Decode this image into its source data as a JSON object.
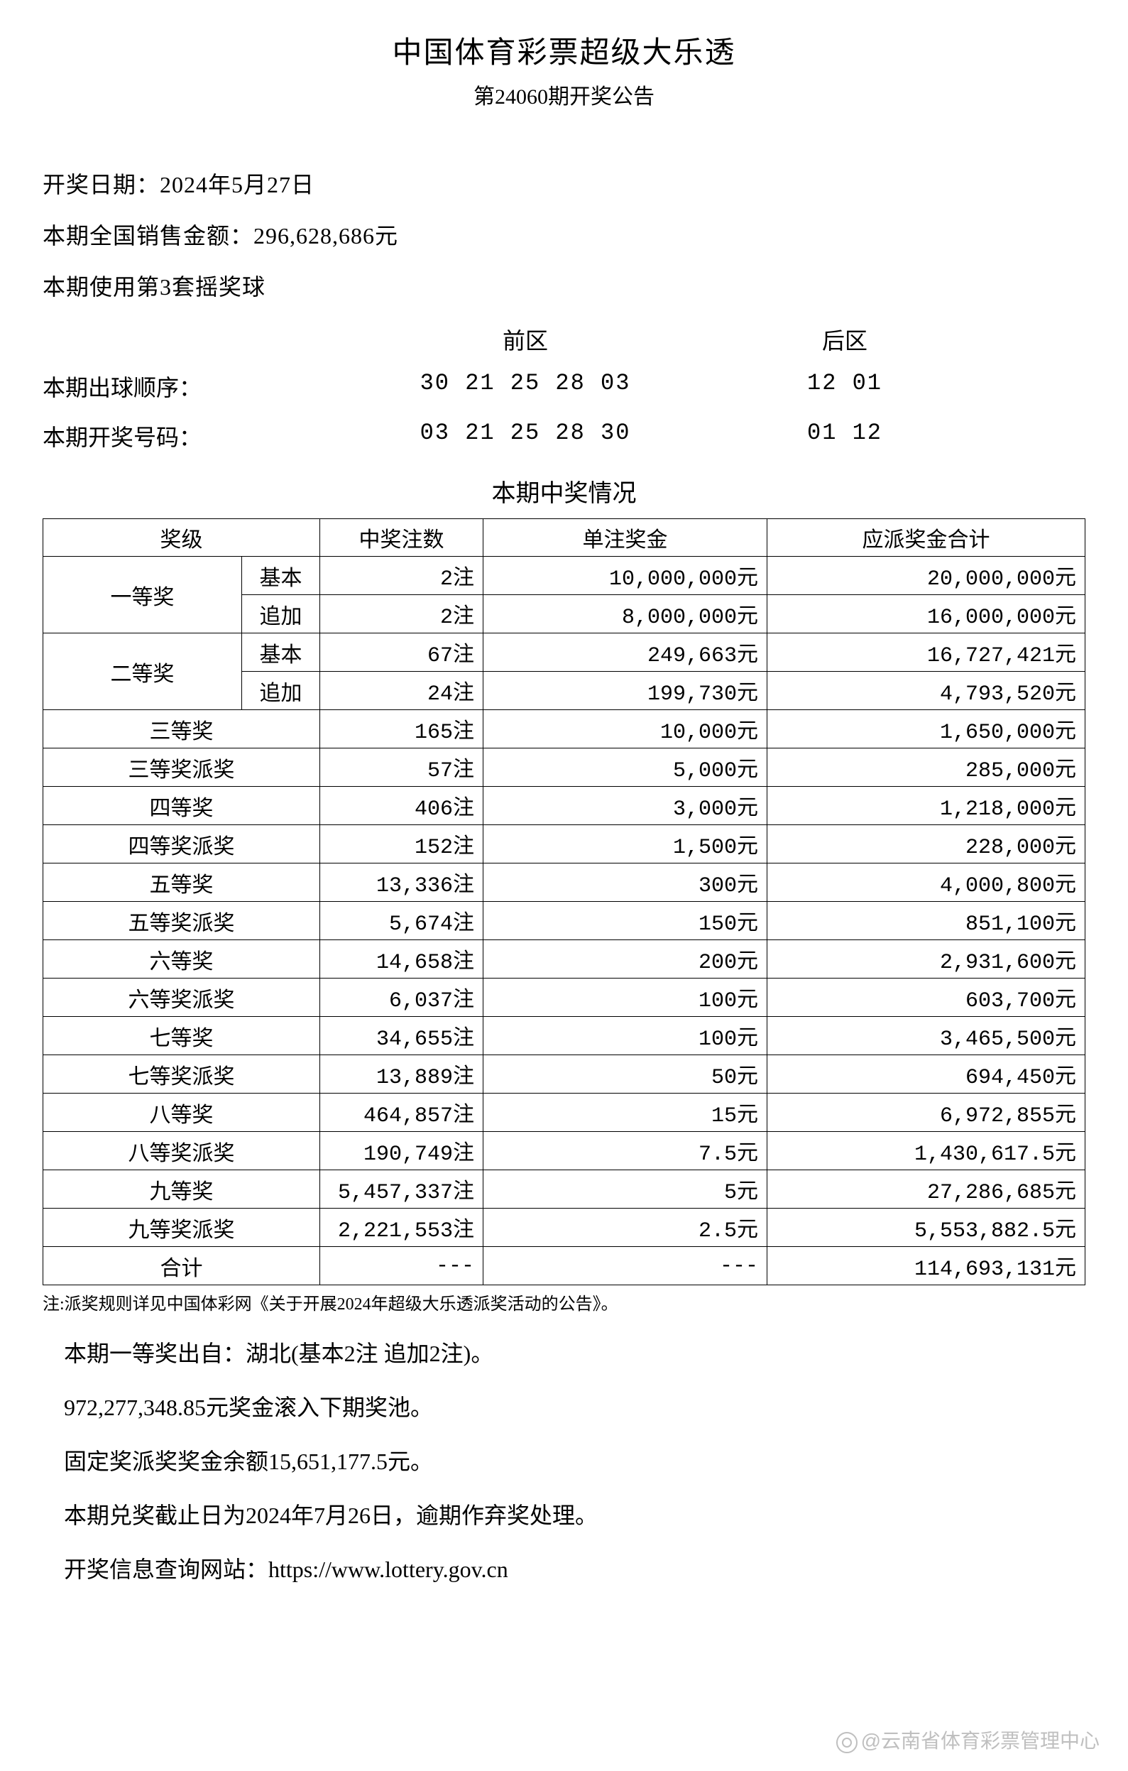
{
  "header": {
    "title": "中国体育彩票超级大乐透",
    "subtitle": "第24060期开奖公告"
  },
  "info": {
    "draw_date": "开奖日期：2024年5月27日",
    "sales": "本期全国销售金额：296,628,686元",
    "ball_set": "本期使用第3套摇奖球"
  },
  "numbers": {
    "front_label": "前区",
    "back_label": "后区",
    "draw_order_label": "本期出球顺序：",
    "draw_order_front": "30 21 25 28 03",
    "draw_order_back": "12 01",
    "winning_label": "本期开奖号码：",
    "winning_front": "03 21 25 28 30",
    "winning_back": "01 12"
  },
  "winning_title": "本期中奖情况",
  "table": {
    "headers": {
      "tier": "奖级",
      "count": "中奖注数",
      "amount": "单注奖金",
      "total": "应派奖金合计"
    },
    "tier1": {
      "name": "一等奖",
      "basic_label": "基本",
      "basic_count": "2注",
      "basic_amount": "10,000,000元",
      "basic_total": "20,000,000元",
      "extra_label": "追加",
      "extra_count": "2注",
      "extra_amount": "8,000,000元",
      "extra_total": "16,000,000元"
    },
    "tier2": {
      "name": "二等奖",
      "basic_label": "基本",
      "basic_count": "67注",
      "basic_amount": "249,663元",
      "basic_total": "16,727,421元",
      "extra_label": "追加",
      "extra_count": "24注",
      "extra_amount": "199,730元",
      "extra_total": "4,793,520元"
    },
    "rows": [
      {
        "name": "三等奖",
        "count": "165注",
        "amount": "10,000元",
        "total": "1,650,000元"
      },
      {
        "name": "三等奖派奖",
        "count": "57注",
        "amount": "5,000元",
        "total": "285,000元"
      },
      {
        "name": "四等奖",
        "count": "406注",
        "amount": "3,000元",
        "total": "1,218,000元"
      },
      {
        "name": "四等奖派奖",
        "count": "152注",
        "amount": "1,500元",
        "total": "228,000元"
      },
      {
        "name": "五等奖",
        "count": "13,336注",
        "amount": "300元",
        "total": "4,000,800元"
      },
      {
        "name": "五等奖派奖",
        "count": "5,674注",
        "amount": "150元",
        "total": "851,100元"
      },
      {
        "name": "六等奖",
        "count": "14,658注",
        "amount": "200元",
        "total": "2,931,600元"
      },
      {
        "name": "六等奖派奖",
        "count": "6,037注",
        "amount": "100元",
        "total": "603,700元"
      },
      {
        "name": "七等奖",
        "count": "34,655注",
        "amount": "100元",
        "total": "3,465,500元"
      },
      {
        "name": "七等奖派奖",
        "count": "13,889注",
        "amount": "50元",
        "total": "694,450元"
      },
      {
        "name": "八等奖",
        "count": "464,857注",
        "amount": "15元",
        "total": "6,972,855元"
      },
      {
        "name": "八等奖派奖",
        "count": "190,749注",
        "amount": "7.5元",
        "total": "1,430,617.5元"
      },
      {
        "name": "九等奖",
        "count": "5,457,337注",
        "amount": "5元",
        "total": "27,286,685元"
      },
      {
        "name": "九等奖派奖",
        "count": "2,221,553注",
        "amount": "2.5元",
        "total": "5,553,882.5元"
      }
    ],
    "sum": {
      "name": "合计",
      "count": "---",
      "amount": "---",
      "total": "114,693,131元"
    }
  },
  "note": "注:派奖规则详见中国体彩网《关于开展2024年超级大乐透派奖活动的公告》。",
  "footer": {
    "line1": "本期一等奖出自：湖北(基本2注 追加2注)。",
    "line2": "972,277,348.85元奖金滚入下期奖池。",
    "line3": "固定奖派奖奖金余额15,651,177.5元。",
    "line4": "本期兑奖截止日为2024年7月26日，逾期作弃奖处理。",
    "line5": "开奖信息查询网站：https://www.lottery.gov.cn"
  },
  "watermark": "@云南省体育彩票管理中心"
}
